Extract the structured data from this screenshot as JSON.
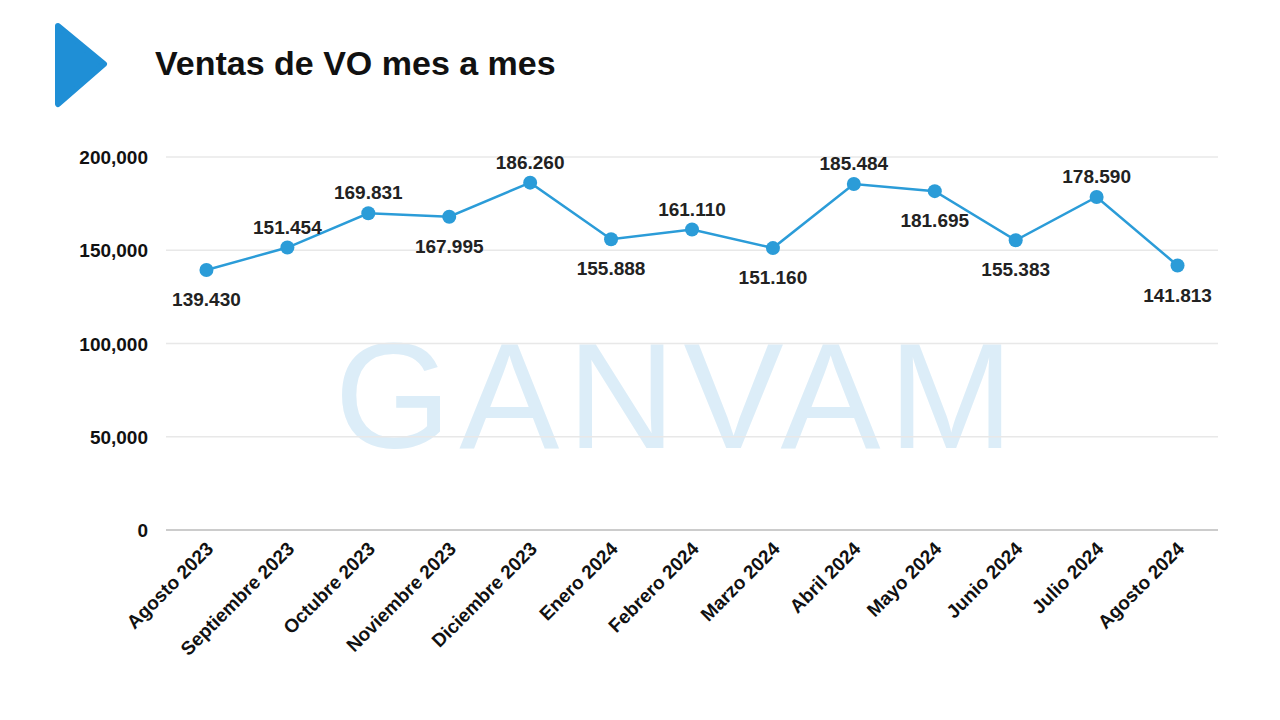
{
  "chart_data": {
    "type": "line",
    "title": "Ventas de VO mes a mes",
    "watermark": "GANVAM",
    "categories": [
      "Agosto 2023",
      "Septiembre 2023",
      "Octubre 2023",
      "Noviembre 2023",
      "Diciembre 2023",
      "Enero 2024",
      "Febrero 2024",
      "Marzo 2024",
      "Abril 2024",
      "Mayo 2024",
      "Junio 2024",
      "Julio 2024",
      "Agosto 2024"
    ],
    "values": [
      139430,
      151454,
      169831,
      167995,
      186260,
      155888,
      161110,
      151160,
      185484,
      181695,
      155383,
      178590,
      141813
    ],
    "value_labels": [
      "139.430",
      "151.454",
      "169.831",
      "167.995",
      "186.260",
      "155.888",
      "161.110",
      "151.160",
      "185.484",
      "181.695",
      "155.383",
      "178.590",
      "141.813"
    ],
    "color": "#2b9cd8",
    "marker": "circle",
    "line_style": "solid",
    "ylim": [
      0,
      200000
    ],
    "yticks": [
      0,
      {
        "value": 50000,
        "label": "50,000"
      },
      {
        "value": 100000,
        "label": "100,000"
      },
      {
        "value": 150000,
        "label": "150,000"
      },
      {
        "value": 200000,
        "label": "200,000"
      }
    ],
    "grid": true,
    "data_labels": true
  }
}
